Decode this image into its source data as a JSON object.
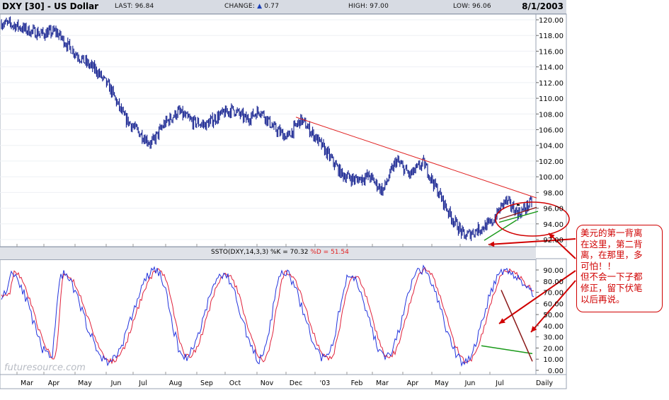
{
  "header": {
    "title": "DXY [30] - US Dollar",
    "last_label": "LAST:",
    "last_value": "96.84",
    "change_label": "CHANGE:",
    "change_value": "0.77",
    "high_label": "HIGH:",
    "high_value": "97.00",
    "low_label": "LOW:",
    "low_value": "96.06",
    "date": "8/1/2003"
  },
  "stochastic_header": {
    "label_k": "SSTO(DXY,14,3,3) %K = 70.32",
    "label_d": "%D = 51.54"
  },
  "watermark": "futuresource.com",
  "annotation_lines": [
    "美元的第一背离",
    "在这里，第二背",
    "离，在那里，多",
    "可怕！！",
    "但不会一下子都",
    "修正，留下伏笔",
    "以后再说。"
  ],
  "colors": {
    "price_line": "#0d1a8c",
    "k_line": "#2233dd",
    "d_line": "#e0203a",
    "trend_red": "#e02020",
    "trend_green": "#1a9a1a",
    "trend_brown": "#8b1a1a",
    "annotation": "#d00000"
  },
  "chart_data": [
    {
      "type": "line",
      "title": "DXY [30] - US Dollar",
      "x_axis_months": [
        "Mar",
        "Apr",
        "May",
        "Jun",
        "Jul",
        "Aug",
        "Sep",
        "Oct",
        "Nov",
        "Dec",
        "'03",
        "Feb",
        "Mar",
        "Apr",
        "May",
        "Jun",
        "Jul",
        "Daily"
      ],
      "y_ticks": [
        "120.00",
        "118.00",
        "116.00",
        "114.00",
        "112.00",
        "110.00",
        "108.00",
        "106.00",
        "104.00",
        "102.00",
        "100.00",
        "98.00",
        "96.00",
        "94.00",
        "92.00"
      ],
      "ylim": [
        91.5,
        121.5
      ],
      "series": [
        {
          "name": "DXY",
          "points": [
            [
              "Feb 2002",
              119.6
            ],
            [
              "Mar 2002",
              119.3
            ],
            [
              "Mar 2002",
              118.6
            ],
            [
              "Apr 2002",
              118.2
            ],
            [
              "Apr 2002",
              118.5
            ],
            [
              "May 2002",
              116.5
            ],
            [
              "May 2002",
              114.8
            ],
            [
              "Jun 2002",
              113.5
            ],
            [
              "Jun 2002",
              111.2
            ],
            [
              "Jun 2002",
              107.6
            ],
            [
              "Jul 2002",
              105.8
            ],
            [
              "Jul 2002",
              104.2
            ],
            [
              "Jul 2002",
              106.8
            ],
            [
              "Aug 2002",
              108.3
            ],
            [
              "Aug 2002",
              107.0
            ],
            [
              "Sep 2002",
              106.6
            ],
            [
              "Sep 2002",
              107.8
            ],
            [
              "Oct 2002",
              108.6
            ],
            [
              "Oct 2002",
              107.3
            ],
            [
              "Nov 2002",
              108.5
            ],
            [
              "Nov 2002",
              106.2
            ],
            [
              "Dec 2002",
              105.0
            ],
            [
              "Dec 2002",
              107.3
            ],
            [
              "Dec 2002",
              105.2
            ],
            [
              "Jan 2003",
              102.8
            ],
            [
              "Feb 2003",
              100.3
            ],
            [
              "Feb 2003",
              99.6
            ],
            [
              "Mar 2003",
              100.1
            ],
            [
              "Mar 2003",
              98.2
            ],
            [
              "Apr 2003",
              102.1
            ],
            [
              "Apr 2003",
              100.2
            ],
            [
              "Apr 2003",
              101.8
            ],
            [
              "May 2003",
              98.3
            ],
            [
              "May 2003",
              95.0
            ],
            [
              "Jun 2003",
              92.4
            ],
            [
              "Jun 2003",
              93.3
            ],
            [
              "Jul 2003",
              94.1
            ],
            [
              "Jul 2003",
              97.0
            ],
            [
              "Jul 2003",
              95.3
            ],
            [
              "Aug 2003",
              96.84
            ]
          ]
        }
      ],
      "trendlines": [
        "red resistance from Dec 2002 high to Aug 2003",
        "green support lines near lows"
      ]
    },
    {
      "type": "line",
      "title": "SSTO(DXY,14,3,3)",
      "y_ticks": [
        "90.00",
        "80.00",
        "70.00",
        "60.00",
        "50.00",
        "40.00",
        "30.00",
        "20.00",
        "10.00",
        "0.00"
      ],
      "ylim": [
        0,
        100
      ],
      "series": [
        {
          "name": "%K",
          "last": 70.32
        },
        {
          "name": "%D",
          "last": 51.54
        }
      ],
      "cycle_peaks": [
        8,
        15,
        72,
        86,
        153,
        220,
        261,
        315,
        368,
        400,
        460,
        495,
        545,
        595,
        655,
        712,
        757
      ],
      "cycle_values_approx": [
        68,
        88,
        12,
        86,
        8,
        90,
        12,
        86,
        10,
        88,
        10,
        85,
        12,
        90,
        8,
        90,
        70
      ]
    }
  ]
}
